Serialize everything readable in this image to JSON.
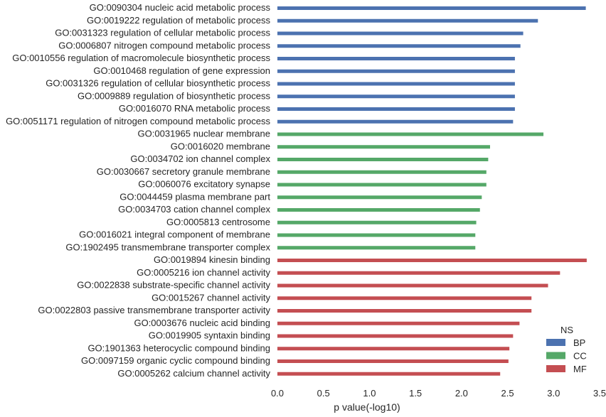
{
  "chart_data": {
    "type": "bar",
    "orientation": "horizontal",
    "title": "",
    "xlabel": "p value(-log10)",
    "ylabel": "",
    "xlim": [
      0,
      3.5
    ],
    "xticks": [
      "0.0",
      "0.5",
      "1.0",
      "1.5",
      "2.0",
      "2.5",
      "3.0",
      "3.5"
    ],
    "grid": false,
    "legend": {
      "title": "NS",
      "placement": "bottom-right",
      "entries": [
        {
          "name": "BP",
          "color": "#4c72b0"
        },
        {
          "name": "CC",
          "color": "#55a868"
        },
        {
          "name": "MF",
          "color": "#c44e52"
        }
      ]
    },
    "categories": [
      "GO:0090304 nucleic acid metabolic process",
      "GO:0019222 regulation of metabolic process",
      "GO:0031323 regulation of cellular metabolic process",
      "GO:0006807 nitrogen compound metabolic process",
      "GO:0010556 regulation of macromolecule biosynthetic process",
      "GO:0010468 regulation of gene expression",
      "GO:0031326 regulation of cellular biosynthetic process",
      "GO:0009889 regulation of biosynthetic process",
      "GO:0016070 RNA metabolic process",
      "GO:0051171 regulation of nitrogen compound metabolic process",
      "GO:0031965 nuclear membrane",
      "GO:0016020 membrane",
      "GO:0034702 ion channel complex",
      "GO:0030667 secretory granule membrane",
      "GO:0060076 excitatory synapse",
      "GO:0044459 plasma membrane part",
      "GO:0034703 cation channel complex",
      "GO:0005813 centrosome",
      "GO:0016021 integral component of membrane",
      "GO:1902495 transmembrane transporter complex",
      "GO:0019894 kinesin binding",
      "GO:0005216 ion channel activity",
      "GO:0022838 substrate-specific channel activity",
      "GO:0015267 channel activity",
      "GO:0022803 passive transmembrane transporter activity",
      "GO:0003676 nucleic acid binding",
      "GO:0019905 syntaxin binding",
      "GO:1901363 heterocyclic compound binding",
      "GO:0097159 organic cyclic compound binding",
      "GO:0005262 calcium channel activity"
    ],
    "series": [
      {
        "name": "BP",
        "color": "#4c72b0",
        "values": [
          3.35,
          2.83,
          2.67,
          2.64,
          2.58,
          2.58,
          2.58,
          2.58,
          2.58,
          2.56,
          null,
          null,
          null,
          null,
          null,
          null,
          null,
          null,
          null,
          null,
          null,
          null,
          null,
          null,
          null,
          null,
          null,
          null,
          null,
          null
        ]
      },
      {
        "name": "CC",
        "color": "#55a868",
        "values": [
          null,
          null,
          null,
          null,
          null,
          null,
          null,
          null,
          null,
          null,
          2.89,
          2.31,
          2.29,
          2.27,
          2.27,
          2.22,
          2.2,
          2.16,
          2.15,
          2.15,
          null,
          null,
          null,
          null,
          null,
          null,
          null,
          null,
          null,
          null
        ]
      },
      {
        "name": "MF",
        "color": "#c44e52",
        "values": [
          null,
          null,
          null,
          null,
          null,
          null,
          null,
          null,
          null,
          null,
          null,
          null,
          null,
          null,
          null,
          null,
          null,
          null,
          null,
          null,
          3.36,
          3.07,
          2.94,
          2.76,
          2.76,
          2.63,
          2.56,
          2.52,
          2.51,
          2.42
        ]
      }
    ]
  }
}
